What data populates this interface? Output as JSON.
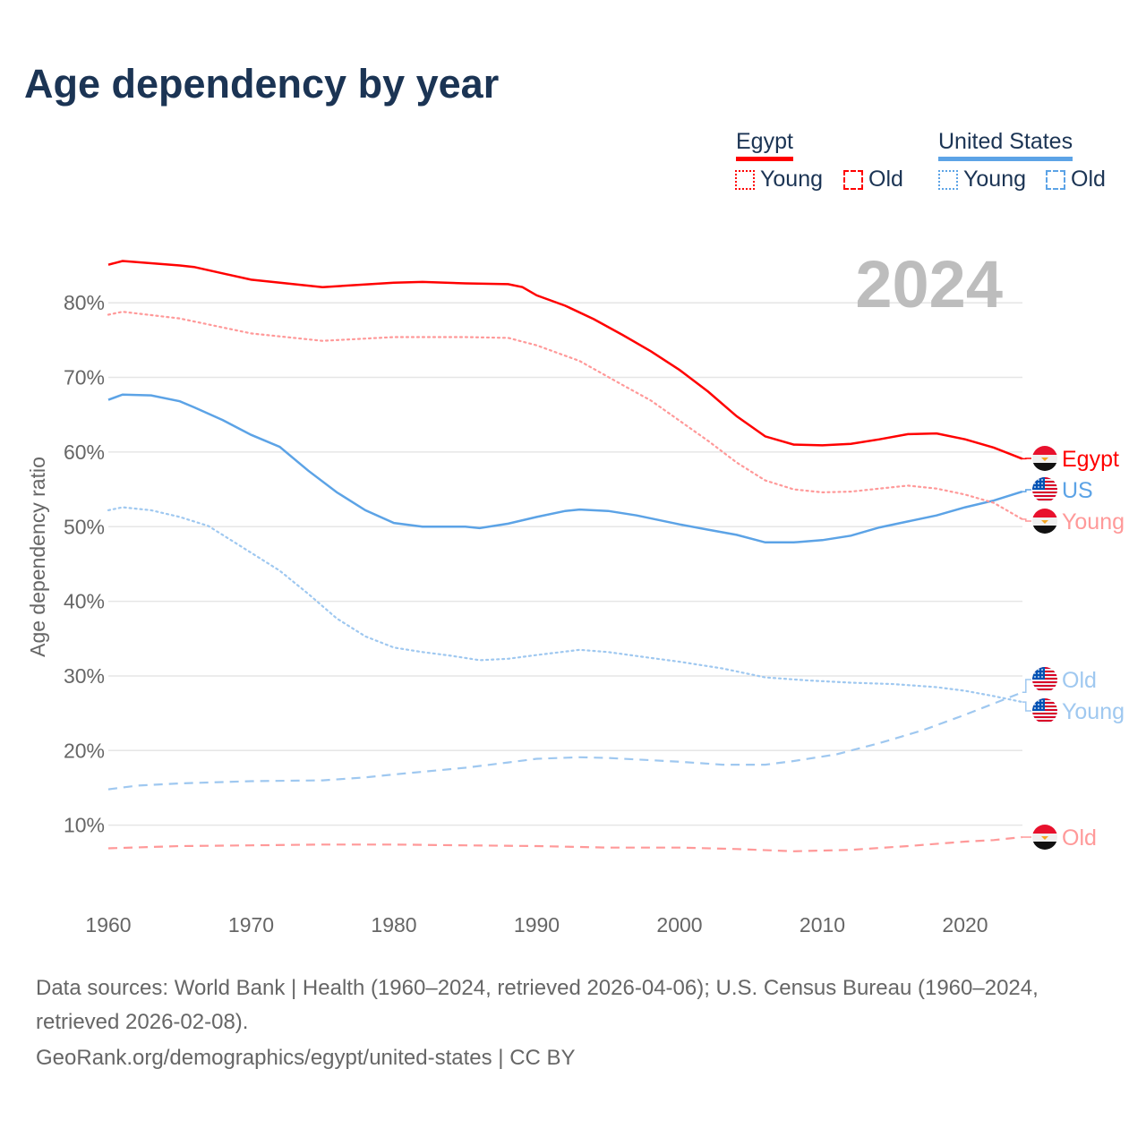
{
  "chart_data": {
    "type": "line",
    "title": "Age dependency by year",
    "ylabel": "Age dependency ratio",
    "xlabel": "",
    "xlim": [
      1960,
      2024
    ],
    "ylim": [
      0,
      90
    ],
    "xticks": [
      "1960",
      "1970",
      "1980",
      "1990",
      "2000",
      "2010",
      "2020"
    ],
    "yticks": [
      "10%",
      "20%",
      "30%",
      "40%",
      "50%",
      "60%",
      "70%",
      "80%"
    ],
    "year_label": "2024",
    "legend": {
      "groups": [
        {
          "name": "Egypt",
          "color": "#ff0000",
          "items": [
            "Young",
            "Old"
          ]
        },
        {
          "name": "United States",
          "color": "#5ca3e6",
          "items": [
            "Young",
            "Old"
          ]
        }
      ],
      "placement": "top-right"
    },
    "series": [
      {
        "name": "Egypt",
        "label": "Egypt",
        "country": "egypt",
        "style": "solid",
        "color": "#ff0000",
        "labelColor": "#ff0000",
        "x": [
          1960,
          1961,
          1965,
          1966,
          1970,
          1975,
          1980,
          1982,
          1985,
          1988,
          1989,
          1990,
          1992,
          1994,
          1996,
          1998,
          2000,
          2002,
          2004,
          2006,
          2008,
          2010,
          2012,
          2014,
          2016,
          2018,
          2020,
          2022,
          2024
        ],
        "y": [
          85.1,
          85.6,
          85.0,
          84.8,
          83.1,
          82.1,
          82.7,
          82.8,
          82.6,
          82.5,
          82.1,
          81.0,
          79.6,
          77.8,
          75.7,
          73.5,
          71.0,
          68.1,
          64.8,
          62.1,
          61.0,
          60.9,
          61.1,
          61.7,
          62.4,
          62.5,
          61.7,
          60.6,
          59.1
        ]
      },
      {
        "name": "Egypt Young",
        "label": "Young",
        "country": "egypt",
        "style": "dotted",
        "color": "#ff9999",
        "labelColor": "#ff9999",
        "x": [
          1960,
          1961,
          1965,
          1970,
          1975,
          1980,
          1985,
          1988,
          1990,
          1993,
          1996,
          1998,
          2000,
          2002,
          2004,
          2006,
          2008,
          2010,
          2012,
          2014,
          2016,
          2018,
          2020,
          2022,
          2024
        ],
        "y": [
          78.4,
          78.8,
          77.9,
          75.9,
          74.9,
          75.4,
          75.4,
          75.3,
          74.3,
          72.2,
          69.0,
          66.9,
          64.2,
          61.5,
          58.6,
          56.2,
          55.0,
          54.6,
          54.7,
          55.1,
          55.5,
          55.1,
          54.3,
          53.2,
          51.0
        ]
      },
      {
        "name": "Egypt Old",
        "label": "Old",
        "country": "egypt",
        "style": "dashed",
        "color": "#ff9999",
        "labelColor": "#ff9999",
        "x": [
          1960,
          1965,
          1970,
          1975,
          1980,
          1985,
          1990,
          1995,
          2000,
          2004,
          2008,
          2012,
          2016,
          2020,
          2022,
          2024
        ],
        "y": [
          6.9,
          7.2,
          7.3,
          7.4,
          7.4,
          7.3,
          7.2,
          7.0,
          7.0,
          6.8,
          6.5,
          6.7,
          7.2,
          7.8,
          8.0,
          8.4
        ]
      },
      {
        "name": "United States",
        "label": "US",
        "country": "us",
        "style": "solid",
        "color": "#5ca3e6",
        "labelColor": "#5ca3e6",
        "x": [
          1960,
          1961,
          1963,
          1965,
          1966,
          1968,
          1970,
          1972,
          1974,
          1976,
          1978,
          1980,
          1982,
          1985,
          1986,
          1988,
          1990,
          1992,
          1993,
          1995,
          1997,
          2000,
          2002,
          2004,
          2006,
          2008,
          2010,
          2012,
          2014,
          2016,
          2018,
          2020,
          2022,
          2024
        ],
        "y": [
          67.0,
          67.7,
          67.6,
          66.8,
          66.0,
          64.3,
          62.3,
          60.7,
          57.5,
          54.6,
          52.2,
          50.5,
          50.0,
          50.0,
          49.8,
          50.4,
          51.3,
          52.1,
          52.3,
          52.1,
          51.5,
          50.3,
          49.6,
          48.9,
          47.9,
          47.9,
          48.2,
          48.8,
          49.9,
          50.7,
          51.5,
          52.6,
          53.5,
          54.7
        ]
      },
      {
        "name": "United States Young",
        "label": "Young",
        "country": "us",
        "style": "dotted",
        "color": "#9fc8f0",
        "labelColor": "#9fc8f0",
        "x": [
          1960,
          1961,
          1963,
          1965,
          1967,
          1970,
          1972,
          1974,
          1976,
          1978,
          1980,
          1982,
          1984,
          1986,
          1988,
          1990,
          1993,
          1995,
          1998,
          2000,
          2003,
          2006,
          2009,
          2012,
          2015,
          2018,
          2020,
          2022,
          2024
        ],
        "y": [
          52.2,
          52.6,
          52.2,
          51.3,
          50.1,
          46.5,
          44.1,
          41.0,
          37.7,
          35.3,
          33.8,
          33.2,
          32.7,
          32.1,
          32.3,
          32.8,
          33.5,
          33.2,
          32.4,
          31.9,
          31.0,
          29.8,
          29.4,
          29.1,
          28.9,
          28.5,
          28.0,
          27.3,
          26.5
        ]
      },
      {
        "name": "United States Old",
        "label": "Old",
        "country": "us",
        "style": "dashed",
        "color": "#9fc8f0",
        "labelColor": "#9fc8f0",
        "x": [
          1960,
          1962,
          1965,
          1970,
          1975,
          1978,
          1980,
          1985,
          1988,
          1990,
          1993,
          1995,
          1998,
          2000,
          2003,
          2006,
          2008,
          2011,
          2014,
          2017,
          2020,
          2022,
          2024
        ],
        "y": [
          14.8,
          15.3,
          15.6,
          15.9,
          16.0,
          16.4,
          16.8,
          17.7,
          18.4,
          18.9,
          19.1,
          19.0,
          18.7,
          18.5,
          18.1,
          18.1,
          18.6,
          19.5,
          21.0,
          22.7,
          24.8,
          26.3,
          27.8
        ]
      }
    ]
  },
  "footer": {
    "line1": "Data sources: World Bank | Health (1960–2024, retrieved 2026-04-06); U.S. Census Bureau (1960–2024,",
    "line2": "retrieved 2026-02-08).",
    "line3": "GeoRank.org/demographics/egypt/united-states | CC BY"
  }
}
